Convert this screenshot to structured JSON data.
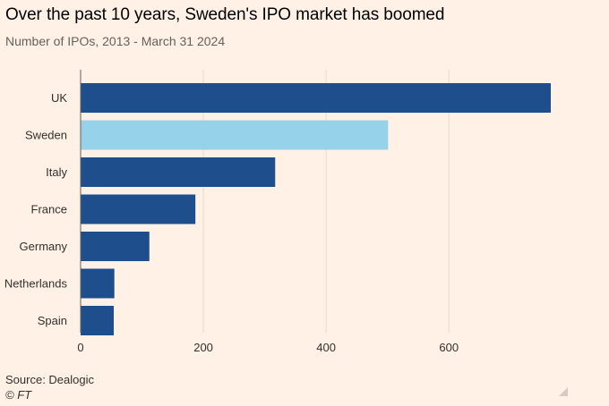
{
  "title": "Over the past 10 years, Sweden's IPO market has boomed",
  "subtitle": "Number of IPOs, 2013 - March 31 2024",
  "source": "Source: Dealogic",
  "credit": "© FT",
  "colors": {
    "background": "#fff1e5",
    "bar_default": "#1e4e8c",
    "bar_highlight": "#96d3ea",
    "grid": "#e6d9ce",
    "text": "#33302e"
  },
  "chart_data": {
    "type": "bar",
    "orientation": "horizontal",
    "categories": [
      "UK",
      "Sweden",
      "Italy",
      "France",
      "Germany",
      "Netherlands",
      "Spain"
    ],
    "values": [
      766,
      501,
      317,
      187,
      112,
      55,
      54
    ],
    "highlight": "Sweden",
    "xlim": [
      0,
      766
    ],
    "xticks": [
      0,
      200,
      400,
      600
    ],
    "grid": true,
    "xlabel": "",
    "ylabel": ""
  }
}
